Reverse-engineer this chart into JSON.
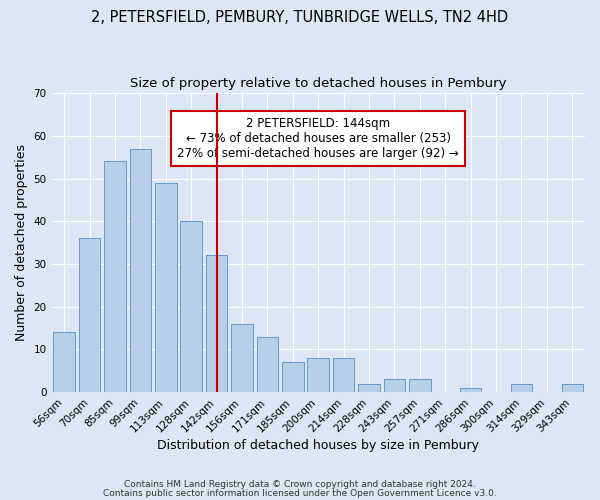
{
  "title": "2, PETERSFIELD, PEMBURY, TUNBRIDGE WELLS, TN2 4HD",
  "subtitle": "Size of property relative to detached houses in Pembury",
  "xlabel": "Distribution of detached houses by size in Pembury",
  "ylabel": "Number of detached properties",
  "categories": [
    "56sqm",
    "70sqm",
    "85sqm",
    "99sqm",
    "113sqm",
    "128sqm",
    "142sqm",
    "156sqm",
    "171sqm",
    "185sqm",
    "200sqm",
    "214sqm",
    "228sqm",
    "243sqm",
    "257sqm",
    "271sqm",
    "286sqm",
    "300sqm",
    "314sqm",
    "329sqm",
    "343sqm"
  ],
  "values": [
    14,
    36,
    54,
    57,
    49,
    40,
    32,
    16,
    13,
    7,
    8,
    8,
    2,
    3,
    3,
    0,
    1,
    0,
    2,
    0,
    2
  ],
  "bar_color": "#b8cfe8",
  "bar_edge_color": "#6699cc",
  "red_line_index": 6,
  "annotation_line1": "2 PETERSFIELD: 144sqm",
  "annotation_line2": "← 73% of detached houses are smaller (253)",
  "annotation_line3": "27% of semi-detached houses are larger (92) →",
  "annotation_box_facecolor": "#ffffff",
  "annotation_box_edgecolor": "#cc0000",
  "ylim": [
    0,
    70
  ],
  "yticks": [
    0,
    10,
    20,
    30,
    40,
    50,
    60,
    70
  ],
  "footnote1": "Contains HM Land Registry data © Crown copyright and database right 2024.",
  "footnote2": "Contains public sector information licensed under the Open Government Licence v3.0.",
  "background_color": "#dce6f5",
  "plot_background_color": "#dce6f5",
  "title_fontsize": 10.5,
  "subtitle_fontsize": 9.5,
  "axis_label_fontsize": 9,
  "tick_fontsize": 7.5,
  "annotation_fontsize": 8.5,
  "footnote_fontsize": 6.5
}
